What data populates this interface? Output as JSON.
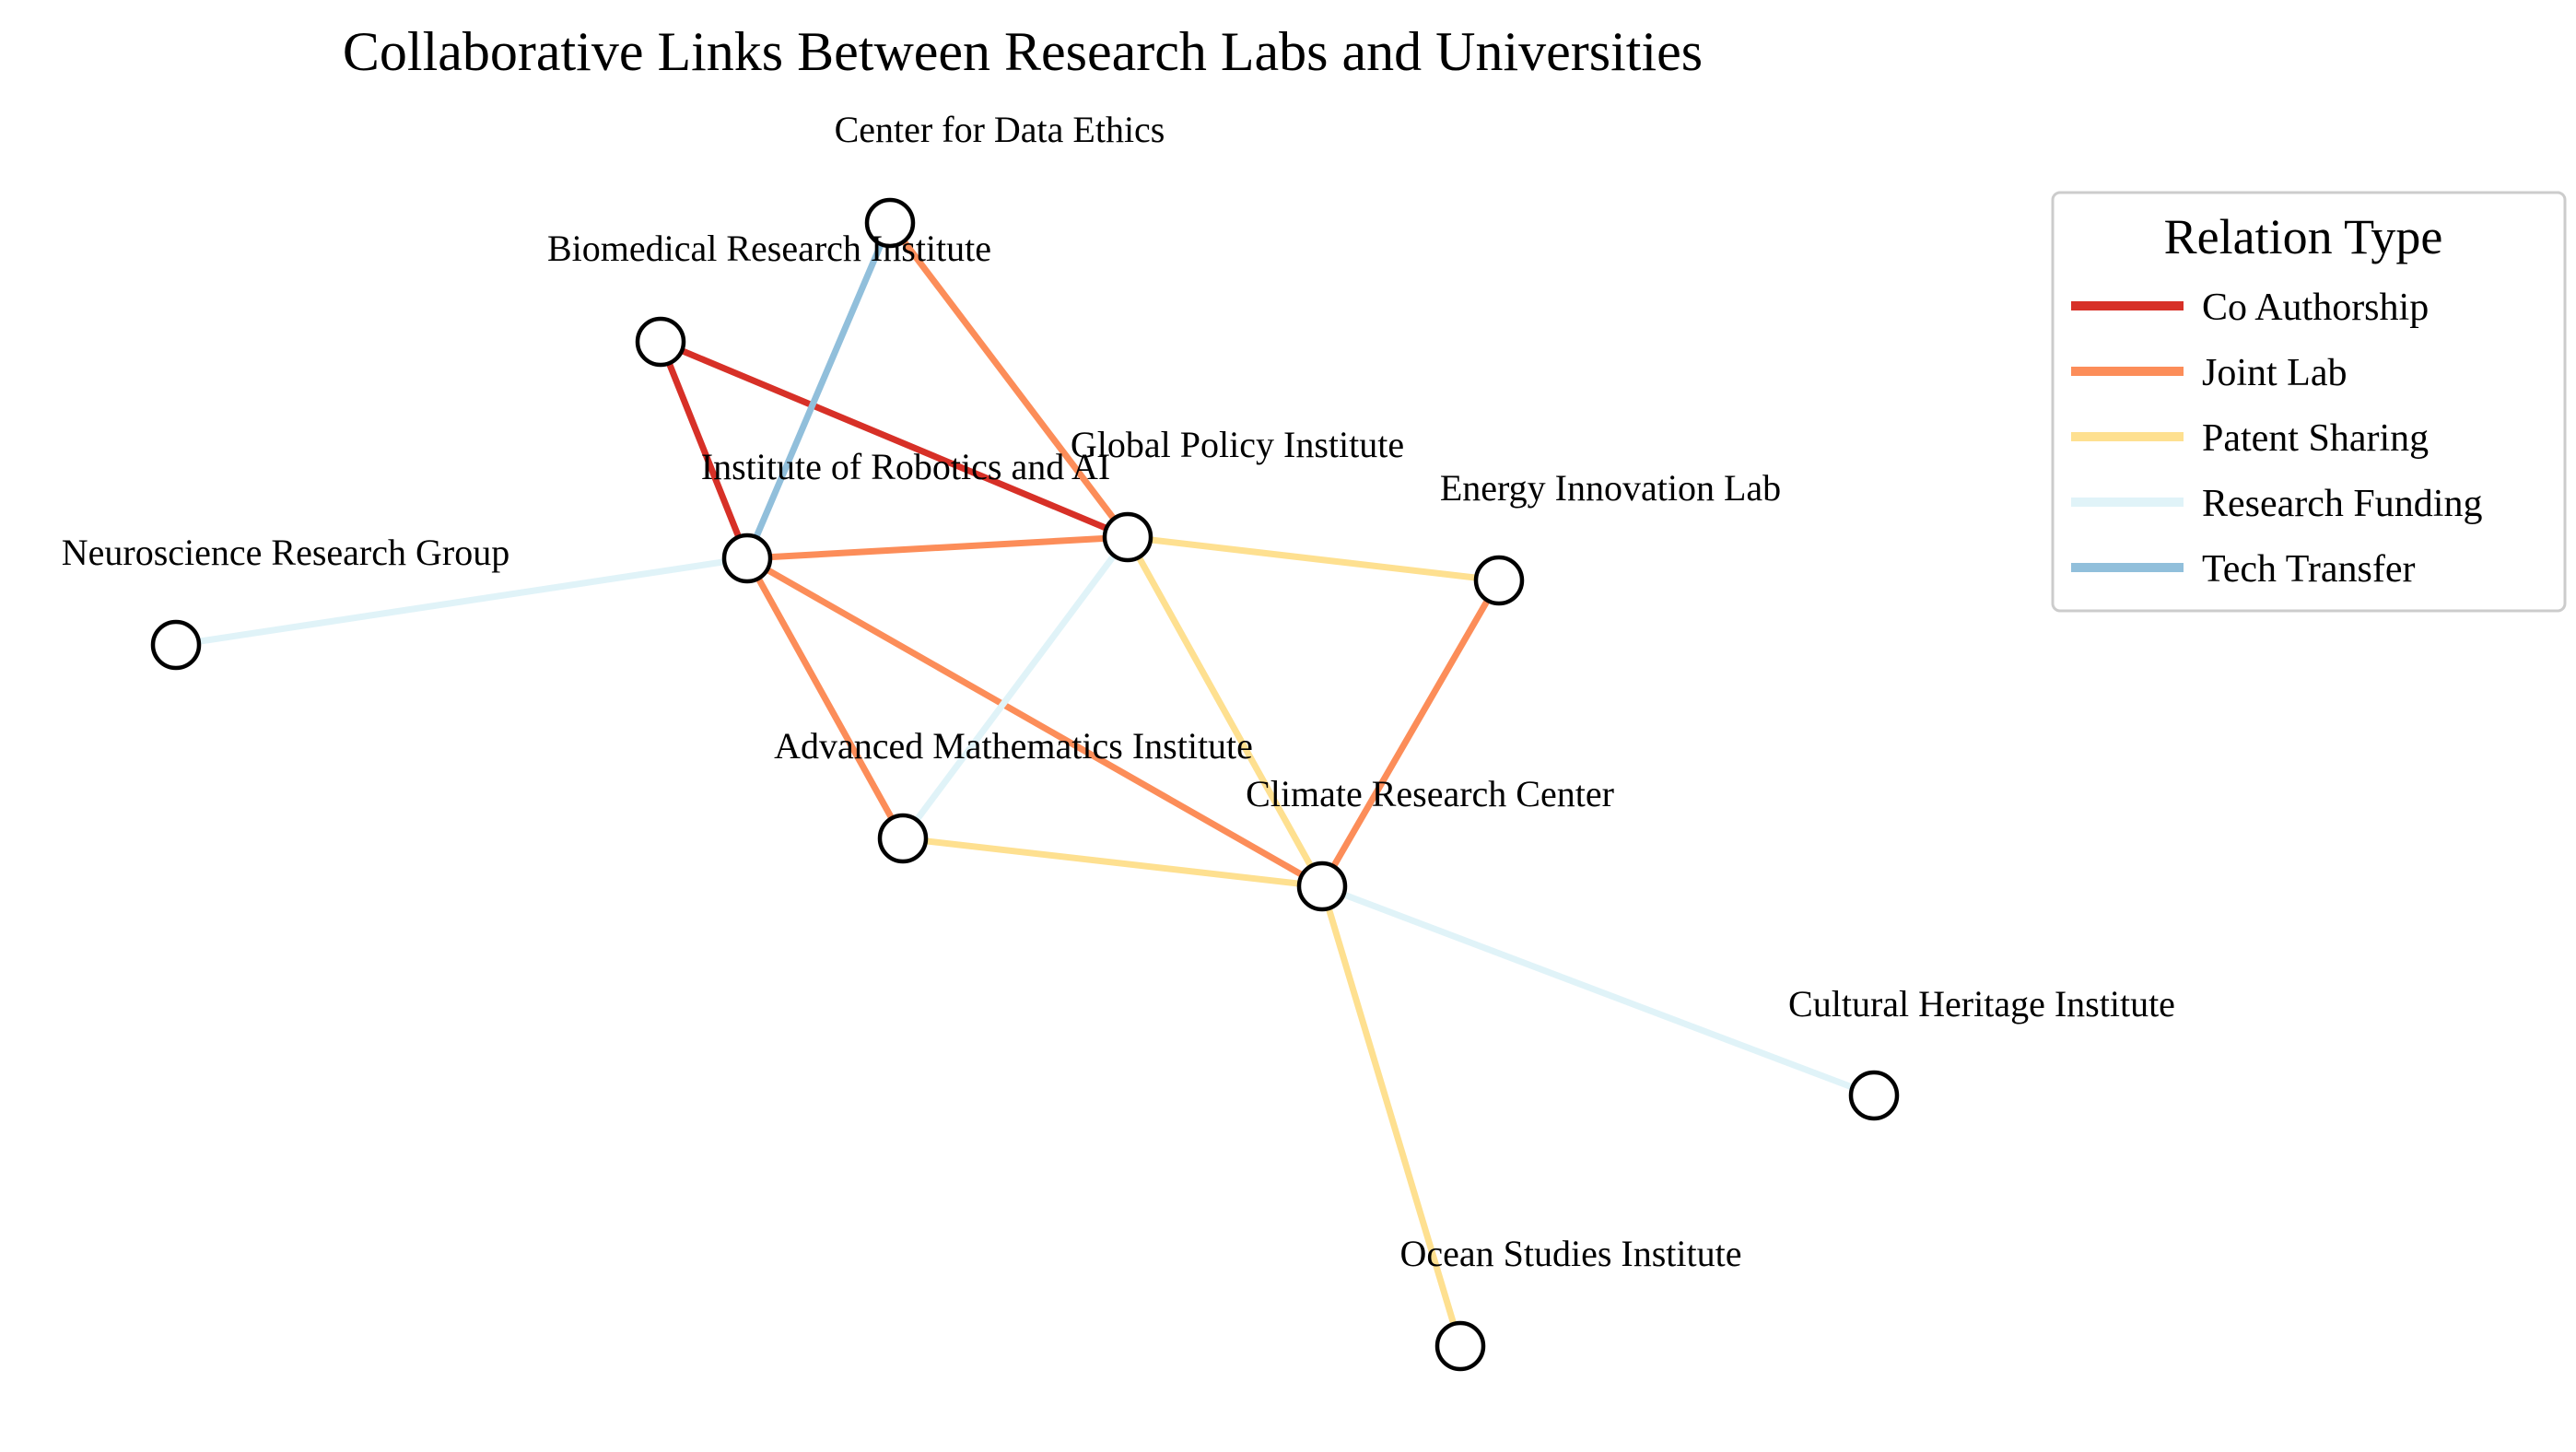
{
  "title": "Collaborative Links Between Research Labs and Universities",
  "legend": {
    "title": "Relation Type",
    "items": [
      {
        "key": "co_authorship",
        "label": "Co Authorship",
        "color": "#d73027"
      },
      {
        "key": "joint_lab",
        "label": "Joint Lab",
        "color": "#fc8d59"
      },
      {
        "key": "patent_sharing",
        "label": "Patent Sharing",
        "color": "#fee090"
      },
      {
        "key": "research_funding",
        "label": "Research Funding",
        "color": "#e0f3f8"
      },
      {
        "key": "tech_transfer",
        "label": "Tech Transfer",
        "color": "#91bfdb"
      }
    ]
  },
  "nodes": [
    {
      "id": "cde",
      "label": "Center for Data Ethics"
    },
    {
      "id": "bri",
      "label": "Biomedical Research Institute"
    },
    {
      "id": "gpi",
      "label": "Global Policy Institute"
    },
    {
      "id": "ira",
      "label": "Institute of Robotics and AI"
    },
    {
      "id": "eil",
      "label": "Energy Innovation Lab"
    },
    {
      "id": "nrg",
      "label": "Neuroscience Research Group"
    },
    {
      "id": "ami",
      "label": "Advanced Mathematics Institute"
    },
    {
      "id": "crc",
      "label": "Climate Research Center"
    },
    {
      "id": "chi",
      "label": "Cultural Heritage Institute"
    },
    {
      "id": "osi",
      "label": "Ocean Studies Institute"
    }
  ],
  "edges": [
    {
      "source": "bri",
      "target": "gpi",
      "type": "co_authorship"
    },
    {
      "source": "bri",
      "target": "ira",
      "type": "co_authorship"
    },
    {
      "source": "cde",
      "target": "ira",
      "type": "tech_transfer"
    },
    {
      "source": "cde",
      "target": "gpi",
      "type": "joint_lab"
    },
    {
      "source": "ira",
      "target": "gpi",
      "type": "joint_lab"
    },
    {
      "source": "ira",
      "target": "ami",
      "type": "joint_lab"
    },
    {
      "source": "ira",
      "target": "crc",
      "type": "joint_lab"
    },
    {
      "source": "ira",
      "target": "nrg",
      "type": "research_funding"
    },
    {
      "source": "gpi",
      "target": "eil",
      "type": "patent_sharing"
    },
    {
      "source": "gpi",
      "target": "crc",
      "type": "patent_sharing"
    },
    {
      "source": "gpi",
      "target": "ami",
      "type": "research_funding"
    },
    {
      "source": "eil",
      "target": "crc",
      "type": "joint_lab"
    },
    {
      "source": "ami",
      "target": "crc",
      "type": "patent_sharing"
    },
    {
      "source": "crc",
      "target": "chi",
      "type": "research_funding"
    },
    {
      "source": "crc",
      "target": "osi",
      "type": "patent_sharing"
    }
  ]
}
